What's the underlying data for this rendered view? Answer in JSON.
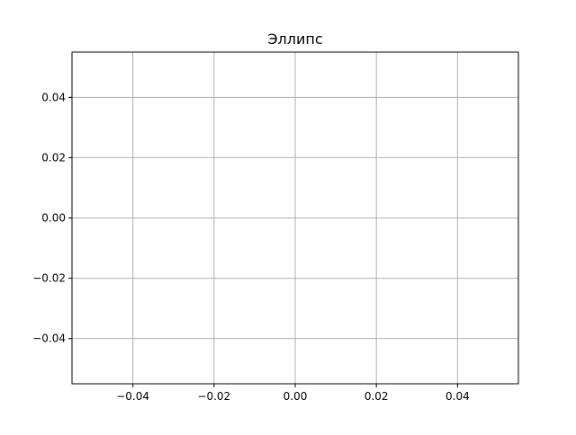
{
  "chart_data": {
    "type": "line",
    "title": "Эллипс",
    "xlabel": "",
    "ylabel": "",
    "xlim": [
      -0.055,
      0.055
    ],
    "ylim": [
      -0.055,
      0.055
    ],
    "x_ticks": [
      -0.04,
      -0.02,
      0.0,
      0.02,
      0.04
    ],
    "x_tick_labels": [
      "−0.04",
      "−0.02",
      "0.00",
      "0.02",
      "0.04"
    ],
    "y_ticks": [
      -0.04,
      -0.02,
      0.0,
      0.02,
      0.04
    ],
    "y_tick_labels": [
      "−0.04",
      "−0.02",
      "0.00",
      "0.02",
      "0.04"
    ],
    "grid": true,
    "series": []
  },
  "colors": {
    "grid": "#b0b0b0",
    "axes": "#000000",
    "background": "#ffffff"
  }
}
